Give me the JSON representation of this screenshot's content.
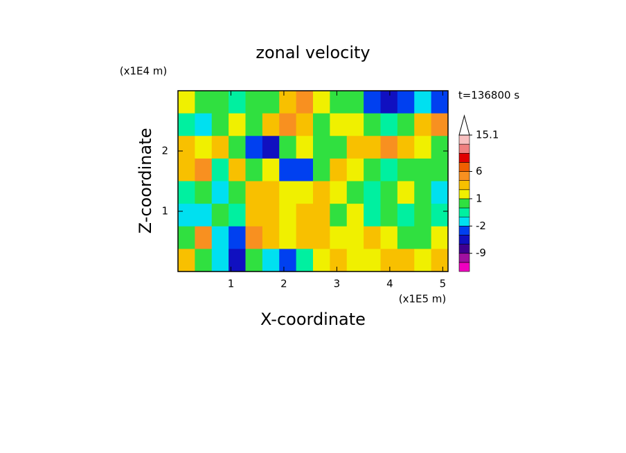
{
  "chart_data": {
    "type": "contour",
    "title": "zonal velocity",
    "annotation": "t=136800 s",
    "x_label": "X-coordinate",
    "y_label": "Z-coordinate",
    "x_unit": "(x1E5 m)",
    "y_unit": "(x1E4 m)",
    "xlim": [
      0,
      5.1
    ],
    "ylim": [
      0,
      3
    ],
    "xticks": [
      1,
      2,
      3,
      4,
      5
    ],
    "yticks": [
      1,
      2
    ],
    "z": [
      [
        1,
        0.5,
        0.5,
        -0.5,
        0.5,
        0.5,
        3,
        4,
        1,
        0.5,
        0.5,
        -4,
        -6,
        -3,
        -2,
        -4
      ],
      [
        -1,
        -2,
        0.5,
        1.5,
        0.5,
        3,
        5,
        3,
        0.5,
        1,
        1,
        0.5,
        -1,
        0.5,
        3,
        4
      ],
      [
        3,
        1,
        2,
        0.5,
        -3,
        -6,
        0.5,
        1.5,
        0.5,
        0.5,
        2,
        3,
        4,
        3,
        1,
        0.5
      ],
      [
        2,
        4,
        -1,
        2,
        0.5,
        1,
        -3,
        -4,
        0.5,
        2,
        1,
        0.5,
        -1,
        0.5,
        0.5,
        0.5
      ],
      [
        -1,
        0.5,
        -1.5,
        0.5,
        3,
        2,
        1.5,
        1,
        2,
        1.5,
        0.5,
        -1,
        0.5,
        1.5,
        0.5,
        -1.5
      ],
      [
        -1.5,
        -2,
        0.5,
        -1,
        3,
        2,
        1.5,
        3,
        2,
        0.5,
        1,
        -0.5,
        0.5,
        -0.5,
        0.5,
        -0.5
      ],
      [
        0.5,
        4,
        -1.5,
        -4,
        4,
        2,
        1.5,
        3,
        2.5,
        1.5,
        1.5,
        2,
        1.5,
        0.5,
        0.5,
        1
      ],
      [
        3,
        0.5,
        -1.5,
        -6,
        0.5,
        -2,
        -3,
        -1,
        1.5,
        2,
        1,
        1.5,
        2,
        2,
        1.5,
        3
      ]
    ],
    "colorbar": {
      "levels": [
        -15,
        -12,
        -9,
        -6,
        -4,
        -2,
        -1,
        0,
        1,
        2,
        4,
        6,
        8,
        10,
        12,
        15.1
      ],
      "colors": [
        "#f000c0",
        "#a010a0",
        "#400090",
        "#1010c0",
        "#0040f0",
        "#00e0f0",
        "#00f0a0",
        "#30e040",
        "#f0f000",
        "#f8c000",
        "#f89020",
        "#f06000",
        "#e00000",
        "#f08080",
        "#f8c0c0"
      ],
      "ticks": [
        15.1,
        6,
        1,
        -2,
        -9
      ]
    }
  }
}
